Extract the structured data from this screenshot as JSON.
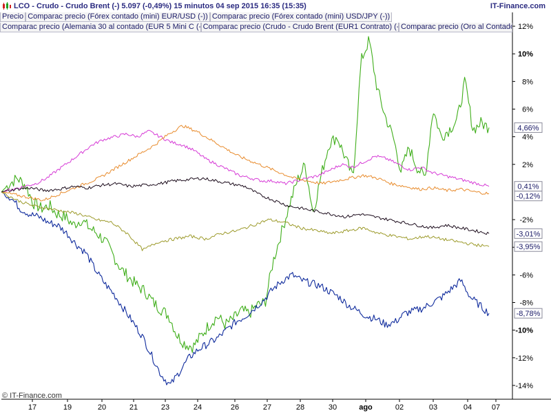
{
  "header": {
    "title": "LCO - Crudo - Crudo Brent (-)     5.097 (-0,49%)     15 minutos   04 sep 2015 16:35 (15:35)",
    "brand": "IT-Finance.com"
  },
  "legend": {
    "row1": [
      "Precio",
      "Comparac precio (Fórex contado (mini) EUR/USD (-))",
      "Comparac precio (Fórex contado (mini) USD/JPY (-))"
    ],
    "row2": [
      "Comparac precio (Alemania 30 al contado (EUR 5 Mini C (-))",
      "Comparac precio (Crudo - Crudo Brent (EUR1 Contrato) (-))",
      "Comparac precio (Oro al Contado"
    ]
  },
  "copyright": "© IT-Finance.com",
  "colors": {
    "green": "#3fae1a",
    "blue": "#0e2a9c",
    "magenta": "#d63ad6",
    "orange": "#e88b2c",
    "black": "#1a0a1a",
    "olive": "#9c9a2a",
    "grid": "#c8c8c8",
    "axis": "#000000"
  },
  "chart_data": {
    "type": "line",
    "y_unit": "%",
    "ylim": [
      -15,
      13
    ],
    "y_ticks": [
      {
        "value": 12,
        "label": "12%",
        "bold": false
      },
      {
        "value": 10,
        "label": "10%",
        "bold": true
      },
      {
        "value": 8,
        "label": "8%",
        "bold": false
      },
      {
        "value": 6,
        "label": "6%",
        "bold": false
      },
      {
        "value": 4,
        "label": "4%",
        "bold": false
      },
      {
        "value": 2,
        "label": "2%",
        "bold": false
      },
      {
        "value": -2,
        "label": "-2%",
        "bold": false
      },
      {
        "value": -4,
        "label": "-4%",
        "bold": false
      },
      {
        "value": -6,
        "label": "-6%",
        "bold": false
      },
      {
        "value": -8,
        "label": "-8%",
        "bold": false
      },
      {
        "value": -10,
        "label": "-10%",
        "bold": true
      },
      {
        "value": -12,
        "label": "-12%",
        "bold": false
      },
      {
        "value": -14,
        "label": "-14%",
        "bold": false
      }
    ],
    "x_ticks": [
      {
        "label": "17",
        "bold": false
      },
      {
        "label": "19",
        "bold": false
      },
      {
        "label": "20",
        "bold": false
      },
      {
        "label": "21",
        "bold": false
      },
      {
        "label": "23",
        "bold": false
      },
      {
        "label": "24",
        "bold": false
      },
      {
        "label": "26",
        "bold": false
      },
      {
        "label": "27",
        "bold": false
      },
      {
        "label": "28",
        "bold": false
      },
      {
        "label": "30",
        "bold": false
      },
      {
        "label": "ago",
        "bold": true
      },
      {
        "label": "02",
        "bold": false
      },
      {
        "label": "03",
        "bold": false
      },
      {
        "label": "04",
        "bold": false
      },
      {
        "label": "07",
        "bold": false
      }
    ],
    "series": [
      {
        "color": "#3fae1a",
        "last_label": "4,66%",
        "last": 4.66,
        "values": [
          0,
          0.6,
          1.0,
          0.5,
          -0.8,
          -1.2,
          -1.0,
          -1.6,
          -1.8,
          -2.4,
          -2.0,
          -2.6,
          -3.0,
          -3.6,
          -4.6,
          -5.6,
          -6.2,
          -6.8,
          -7.2,
          -8.0,
          -8.5,
          -9.0,
          -10.4,
          -11.0,
          -11.2,
          -10.4,
          -9.6,
          -9.0,
          -9.6,
          -9.2,
          -8.6,
          -8.8,
          -8.2,
          -8.0,
          -5.0,
          -3.0,
          -1.0,
          0.8,
          2.0,
          -1.5,
          1.2,
          3.5,
          4.0,
          2.5,
          1.0,
          9.5,
          11.0,
          7.5,
          5.5,
          4.0,
          1.5,
          3.2,
          1.8,
          1.0,
          6.0,
          4.0,
          4.5,
          5.2,
          8.0,
          4.5,
          5.0,
          4.66
        ]
      },
      {
        "color": "#0e2a9c",
        "last_label": "-8,78%",
        "last": -8.78,
        "values": [
          0,
          -0.4,
          -1.2,
          -1.6,
          -1.8,
          -2.2,
          -2.4,
          -3.0,
          -3.8,
          -4.4,
          -5.6,
          -6.6,
          -7.4,
          -8.4,
          -9.4,
          -10.4,
          -11.8,
          -13.2,
          -14.0,
          -13.0,
          -12.0,
          -11.4,
          -11.0,
          -10.6,
          -10.0,
          -9.4,
          -9.0,
          -8.4,
          -7.8,
          -7.0,
          -6.4,
          -6.0,
          -6.4,
          -6.6,
          -6.8,
          -7.2,
          -7.6,
          -8.2,
          -8.6,
          -9.0,
          -9.2,
          -9.6,
          -9.4,
          -8.8,
          -8.6,
          -8.4,
          -8.0,
          -7.6,
          -7.0,
          -6.4,
          -7.6,
          -8.2,
          -8.78
        ]
      },
      {
        "color": "#d63ad6",
        "last_label": "0,41%",
        "last": 0.41,
        "values": [
          0,
          0.2,
          0.4,
          0.6,
          1.0,
          1.6,
          2.2,
          2.8,
          3.4,
          3.8,
          4.0,
          4.2,
          4.0,
          4.4,
          4.0,
          3.6,
          3.4,
          3.0,
          2.4,
          2.0,
          1.6,
          1.2,
          1.0,
          0.8,
          0.8,
          0.6,
          0.8,
          1.0,
          1.2,
          1.6,
          2.0,
          1.8,
          2.2,
          2.6,
          2.4,
          2.0,
          1.6,
          1.8,
          1.4,
          1.2,
          1.0,
          0.8,
          0.6,
          0.41
        ]
      },
      {
        "color": "#e88b2c",
        "last_label": "-0,12%",
        "last": -0.12,
        "values": [
          0,
          -0.2,
          -0.4,
          -0.6,
          -0.2,
          0.2,
          0.6,
          1.0,
          1.6,
          2.2,
          2.8,
          3.4,
          4.2,
          4.8,
          4.4,
          3.8,
          3.2,
          2.6,
          2.2,
          1.8,
          1.4,
          1.0,
          0.8,
          0.6,
          0.8,
          1.0,
          1.2,
          1.0,
          0.6,
          0.4,
          0.2,
          0.3,
          0.1,
          0.2,
          0.0,
          -0.12
        ]
      },
      {
        "color": "#1a0a1a",
        "last_label": "-3,01%",
        "last": -3.01,
        "values": [
          0,
          0.2,
          0.3,
          0.1,
          0.2,
          0.4,
          0.3,
          0.5,
          0.6,
          0.4,
          0.5,
          0.6,
          0.8,
          0.9,
          1.0,
          0.8,
          0.6,
          0.4,
          -0.2,
          -0.6,
          -1.0,
          -1.2,
          -1.4,
          -1.6,
          -1.8,
          -1.6,
          -1.8,
          -2.0,
          -2.2,
          -2.4,
          -2.6,
          -2.4,
          -2.6,
          -2.8,
          -3.01
        ]
      },
      {
        "color": "#9c9a2a",
        "last_label": "-3,95%",
        "last": -3.95,
        "values": [
          0,
          -0.6,
          -1.0,
          -1.2,
          -1.4,
          -1.6,
          -2.0,
          -2.2,
          -3.0,
          -4.2,
          -3.6,
          -3.4,
          -3.2,
          -3.4,
          -3.0,
          -2.8,
          -2.4,
          -2.0,
          -2.2,
          -2.6,
          -2.8,
          -3.0,
          -2.8,
          -2.6,
          -3.0,
          -3.2,
          -3.4,
          -3.2,
          -3.4,
          -3.6,
          -3.8,
          -3.95
        ]
      }
    ]
  }
}
